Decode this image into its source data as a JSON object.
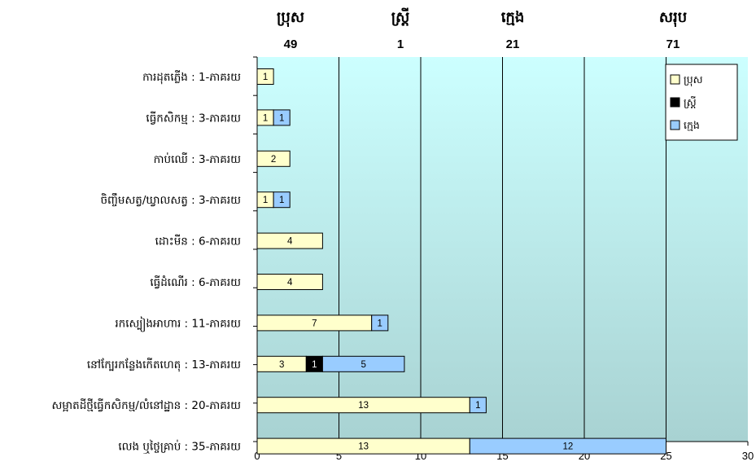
{
  "summary": [
    {
      "label": "ប្រុស",
      "value": "49"
    },
    {
      "label": "ស្ត្រី",
      "value": "1"
    },
    {
      "label": "ក្មេង",
      "value": "21"
    },
    {
      "label": "សរុប",
      "value": "71"
    }
  ],
  "colors": {
    "boys": "#ffffcc",
    "women": "#000000",
    "children": "#99ccff",
    "plot_top": "#ccffff",
    "plot_bottom": "#a8d2d2"
  },
  "chart_data": {
    "type": "bar",
    "orientation": "horizontal",
    "stacked": true,
    "categories": [
      "ការដុតភ្លើង : 1-ភាគរយ",
      "ធ្វើកសិកម្ម : 3-ភាគរយ",
      "កាប់ឈើ : 3-ភាគរយ",
      "ចិញ្ចឹមសត្វ/ឃ្វាលសត្វ : 3-ភាគរយ",
      "ដោះមីន : 6-ភាគរយ",
      "ធ្វើដំណើរ : 6-ភាគរយ",
      "រកស្បៀងអាហារ : 11-ភាគរយ",
      "នៅក្បែរកន្លែងកើតហេតុ : 13-ភាគរយ",
      "សម្អាតដីថ្មីធ្វើកសិកម្ម/លំនៅដ្ឋាន : 20-ភាគរយ",
      "លេង ឬថ្ចៃគ្រាប់ : 35-ភាគរយ"
    ],
    "series": [
      {
        "name": "ប្រុស",
        "values": [
          1,
          1,
          2,
          1,
          4,
          4,
          7,
          3,
          13,
          13
        ]
      },
      {
        "name": "ស្ត្រី",
        "values": [
          0,
          0,
          0,
          0,
          0,
          0,
          0,
          1,
          0,
          0
        ]
      },
      {
        "name": "ក្មេង",
        "values": [
          0,
          1,
          0,
          1,
          0,
          0,
          1,
          5,
          1,
          12
        ]
      }
    ],
    "xlim": [
      0,
      30
    ],
    "xticks": [
      0,
      5,
      10,
      15,
      20,
      25,
      30
    ],
    "grid": true,
    "legend_position": "top-right"
  }
}
